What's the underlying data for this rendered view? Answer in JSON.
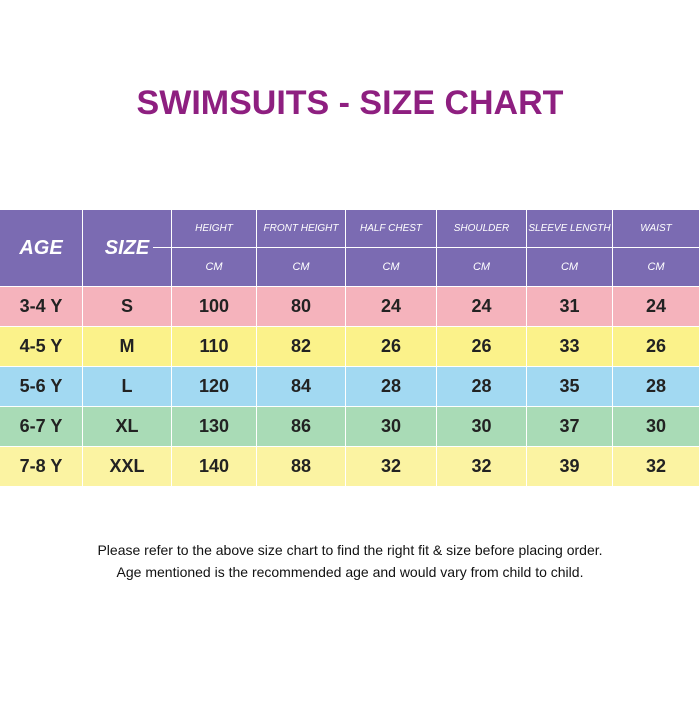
{
  "title": "SWIMSUITS - SIZE CHART",
  "table": {
    "header": [
      "AGE",
      "SIZE",
      "HEIGHT",
      "FRONT HEIGHT",
      "HALF CHEST",
      "SHOULDER",
      "SLEEVE LENGTH",
      "WAIST"
    ],
    "units": [
      "CM",
      "CM",
      "CM",
      "CM",
      "CM",
      "CM"
    ],
    "rows": [
      [
        "3-4 Y",
        "S",
        100,
        80,
        24,
        24,
        31,
        24
      ],
      [
        "4-5 Y",
        "M",
        110,
        82,
        26,
        26,
        33,
        26
      ],
      [
        "5-6 Y",
        "L",
        120,
        84,
        28,
        28,
        35,
        28
      ],
      [
        "6-7 Y",
        "XL",
        130,
        86,
        30,
        30,
        37,
        30
      ],
      [
        "7-8 Y",
        "XXL",
        140,
        88,
        32,
        32,
        39,
        32
      ]
    ]
  },
  "notes": [
    "Please refer to the above size chart to find the right fit & size before placing order.",
    "Age mentioned is the recommended age and would vary from child to child."
  ]
}
